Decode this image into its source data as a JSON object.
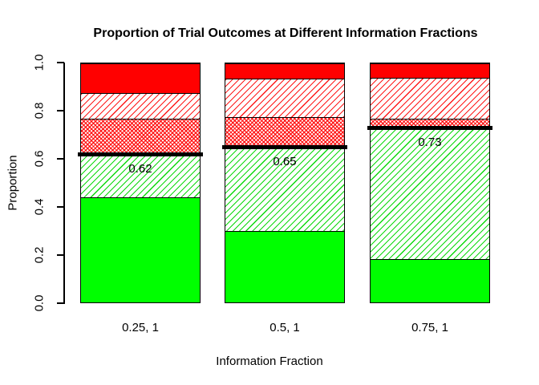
{
  "title": "Proportion of Trial Outcomes at Different Information Fractions",
  "x_axis": {
    "label": "Information Fraction",
    "tick_labels": [
      "0.25, 1",
      "0.5, 1",
      "0.75, 1"
    ]
  },
  "y_axis": {
    "label": "Proportion",
    "ticks": [
      0.0,
      0.2,
      0.4,
      0.6,
      0.8,
      1.0
    ],
    "tick_labels": [
      "0.0",
      "0.2",
      "0.4",
      "0.6",
      "0.8",
      "1.0"
    ]
  },
  "colors": {
    "solid_green": "#00ff00",
    "solid_red": "#ff0000",
    "hatch_green_line": "#00d700",
    "hatch_red_line": "#ff0000",
    "threshold_line": "#000000",
    "background": "#ffffff",
    "text": "#000000"
  },
  "chart_data": {
    "type": "bar",
    "stacked": true,
    "title": "Proportion of Trial Outcomes at Different Information Fractions",
    "xlabel": "Information Fraction",
    "ylabel": "Proportion",
    "ylim": [
      0,
      1
    ],
    "grid": false,
    "legend": false,
    "categories": [
      "0.25, 1",
      "0.5, 1",
      "0.75, 1"
    ],
    "series": [
      {
        "name": "solid-green",
        "pattern": "solid-green",
        "values": [
          0.44,
          0.3,
          0.18
        ]
      },
      {
        "name": "hatched-green",
        "pattern": "hatch-green",
        "values": [
          0.18,
          0.35,
          0.55
        ]
      },
      {
        "name": "dense-hatched-red",
        "pattern": "dense-hatch-red",
        "values": [
          0.15,
          0.125,
          0.04
        ]
      },
      {
        "name": "hatched-red",
        "pattern": "hatch-red",
        "values": [
          0.105,
          0.16,
          0.17
        ]
      },
      {
        "name": "solid-red",
        "pattern": "solid-red",
        "values": [
          0.125,
          0.065,
          0.06
        ]
      }
    ],
    "threshold_lines": [
      0.62,
      0.65,
      0.73
    ],
    "threshold_labels": [
      "0.62",
      "0.65",
      "0.73"
    ]
  }
}
